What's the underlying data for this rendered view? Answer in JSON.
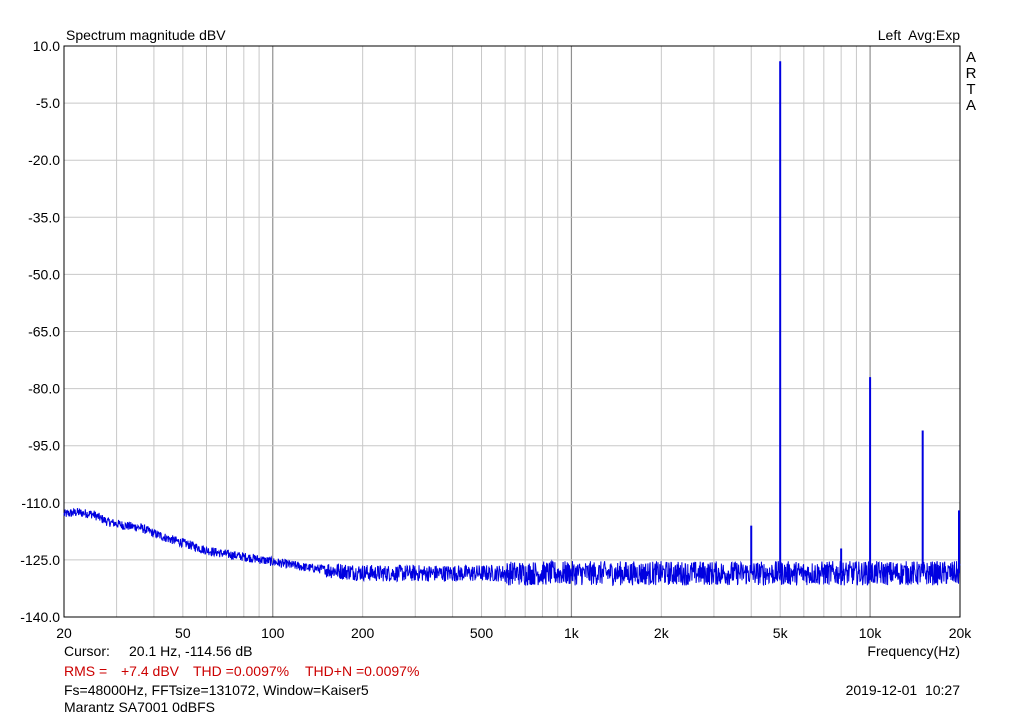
{
  "header": {
    "title": "Spectrum magnitude dBV",
    "channel_mode": "Left  Avg:Exp",
    "brand_letters": [
      "A",
      "R",
      "T",
      "A"
    ]
  },
  "footer": {
    "cursor_label": "Cursor:",
    "cursor_value": "20.1 Hz, -114.56 dB",
    "rms_label": "RMS =",
    "rms_value": "+7.4 dBV",
    "thd_label": "THD =0.0097%",
    "thdn_label": "THD+N =0.0097%",
    "settings": "Fs=48000Hz, FFTsize=131072, Window=Kaiser5",
    "datetime": "2019-12-01  10:27",
    "measurement_name": "Marantz SA7001 0dBFS"
  },
  "colors": {
    "trace": "#0000e0",
    "grid": "#c8c8c8",
    "axis": "#000000",
    "stats_text": "#cc0000"
  },
  "chart_data": {
    "type": "line",
    "title": "Spectrum magnitude dBV",
    "xlabel": "Frequency(Hz)",
    "ylabel": "",
    "x_scale": "log",
    "xlim": [
      20,
      20000
    ],
    "ylim": [
      -140,
      10
    ],
    "grid": true,
    "x_ticks": [
      {
        "value": 20,
        "label": "20"
      },
      {
        "value": 50,
        "label": "50"
      },
      {
        "value": 100,
        "label": "100"
      },
      {
        "value": 200,
        "label": "200"
      },
      {
        "value": 500,
        "label": "500"
      },
      {
        "value": 1000,
        "label": "1k"
      },
      {
        "value": 2000,
        "label": "2k"
      },
      {
        "value": 5000,
        "label": "5k"
      },
      {
        "value": 10000,
        "label": "10k"
      },
      {
        "value": 20000,
        "label": "20k"
      }
    ],
    "y_ticks": [
      {
        "value": 10,
        "label": "10.0"
      },
      {
        "value": -5,
        "label": "-5.0"
      },
      {
        "value": -20,
        "label": "-20.0"
      },
      {
        "value": -35,
        "label": "-35.0"
      },
      {
        "value": -50,
        "label": "-50.0"
      },
      {
        "value": -65,
        "label": "-65.0"
      },
      {
        "value": -80,
        "label": "-80.0"
      },
      {
        "value": -95,
        "label": "-95.0"
      },
      {
        "value": -110,
        "label": "-110.0"
      },
      {
        "value": -125,
        "label": "-125.0"
      },
      {
        "value": -140,
        "label": "-140.0"
      }
    ],
    "series": [
      {
        "color": "#0000e0",
        "noise_floor": {
          "x": [
            20,
            22,
            25,
            28,
            32,
            36,
            40,
            45,
            50,
            60,
            70,
            85,
            100,
            130,
            170,
            220,
            300,
            400,
            500,
            700,
            1000,
            1500,
            2000,
            3000,
            4000,
            5000,
            7000,
            10000,
            15000,
            20000
          ],
          "y": [
            -113,
            -112.5,
            -113,
            -115,
            -116,
            -116.5,
            -118,
            -119.5,
            -120.5,
            -122.5,
            -123.5,
            -124.5,
            -125.5,
            -127,
            -128,
            -128.5,
            -128.5,
            -128.5,
            -128.5,
            -128.5,
            -128.5,
            -128.5,
            -128.5,
            -128.5,
            -128.5,
            -128.5,
            -128.5,
            -128.5,
            -128.5,
            -128.5
          ]
        },
        "peaks": [
          {
            "x": 4000,
            "y": -116
          },
          {
            "x": 5000,
            "y": 6
          },
          {
            "x": 8000,
            "y": -122
          },
          {
            "x": 10000,
            "y": -77
          },
          {
            "x": 15000,
            "y": -91
          },
          {
            "x": 20000,
            "y": -112
          }
        ]
      }
    ]
  }
}
